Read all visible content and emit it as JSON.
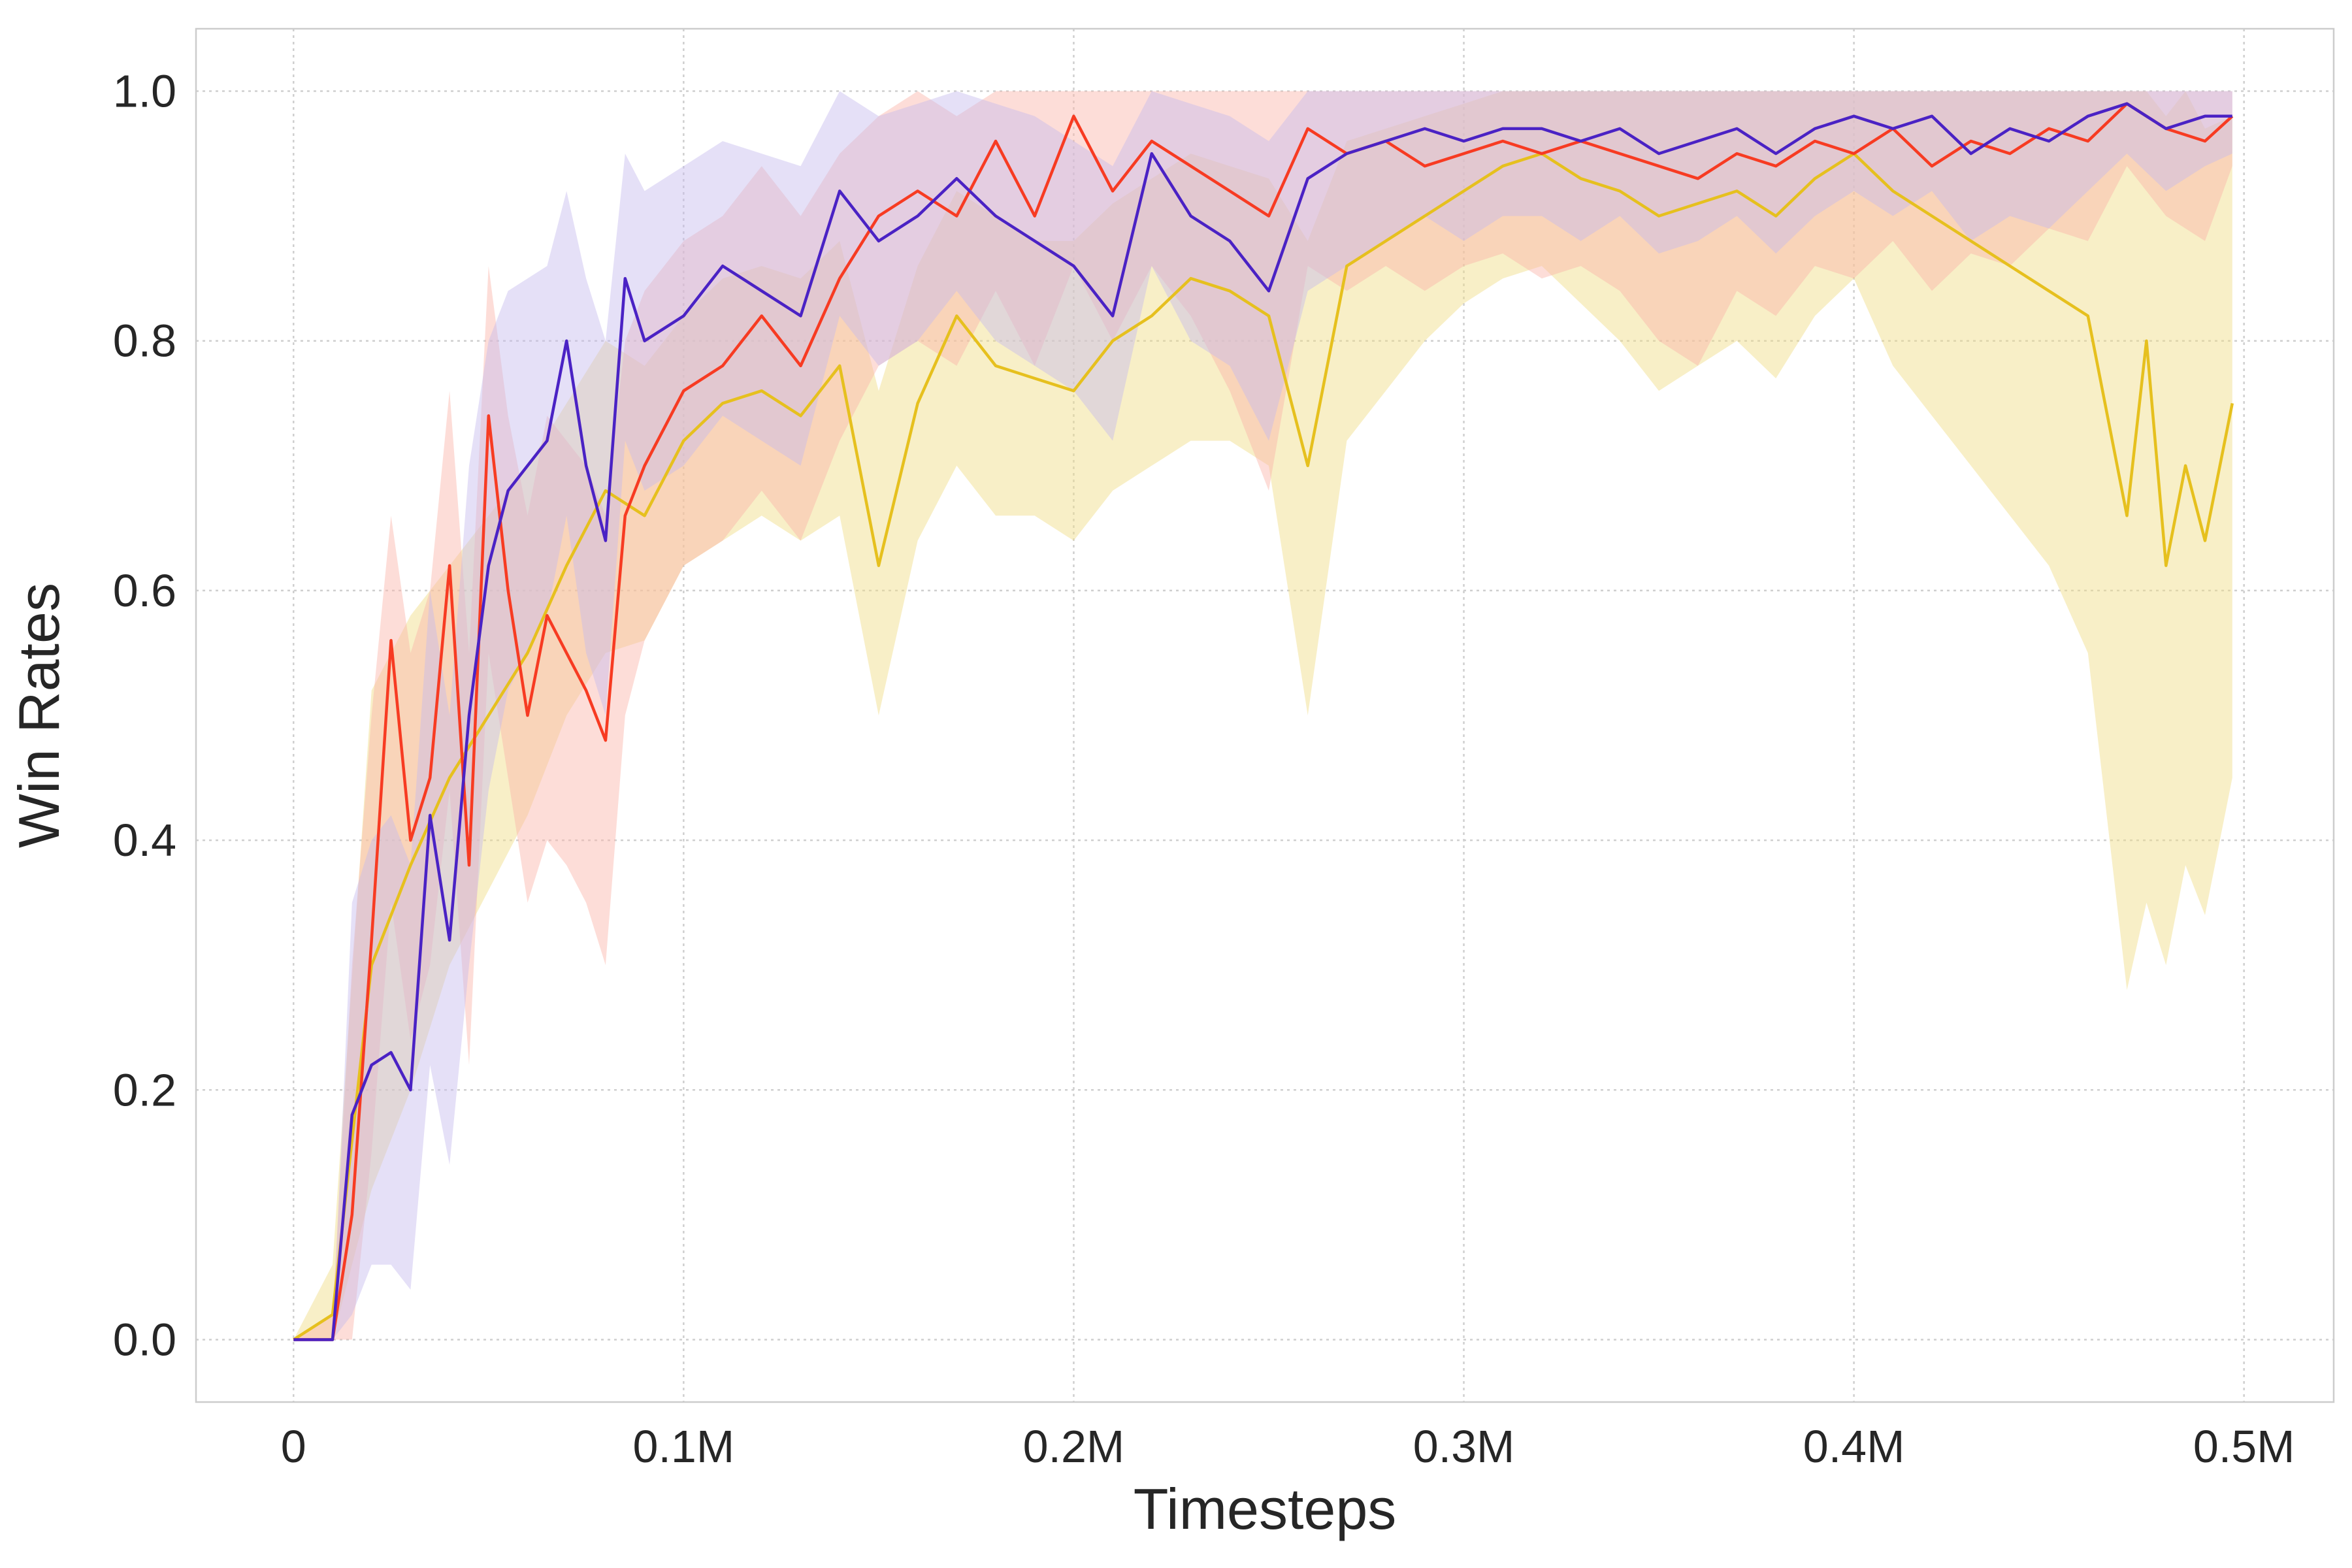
{
  "chart_data": {
    "type": "line",
    "xlabel": "Timesteps",
    "ylabel": "Win Rates",
    "xlim": [
      -25000,
      523000
    ],
    "ylim": [
      -0.05,
      1.05
    ],
    "xticks": [
      0,
      100000,
      200000,
      300000,
      400000,
      500000
    ],
    "xtick_labels": [
      "0",
      "0.1M",
      "0.2M",
      "0.3M",
      "0.4M",
      "0.5M"
    ],
    "yticks": [
      0.0,
      0.2,
      0.4,
      0.6,
      0.8,
      1.0
    ],
    "ytick_labels": [
      "0.0",
      "0.2",
      "0.4",
      "0.6",
      "0.8",
      "1.0"
    ],
    "grid": true,
    "legend": "none",
    "colors": {
      "yellow": "#e6c01e",
      "red": "#f73b22",
      "purple": "#4a22c4"
    },
    "series": [
      {
        "color": "#e6c01e",
        "band_color": "#f0dc82",
        "x": [
          0,
          10000,
          20000,
          30000,
          40000,
          50000,
          60000,
          70000,
          80000,
          90000,
          100000,
          110000,
          120000,
          130000,
          140000,
          150000,
          160000,
          170000,
          180000,
          190000,
          200000,
          210000,
          220000,
          230000,
          240000,
          250000,
          260000,
          270000,
          280000,
          290000,
          300000,
          310000,
          320000,
          330000,
          340000,
          350000,
          360000,
          370000,
          380000,
          390000,
          400000,
          410000,
          420000,
          430000,
          440000,
          450000,
          460000,
          470000,
          475000,
          480000,
          485000,
          490000,
          497000
        ],
        "values": [
          0,
          0.02,
          0.3,
          0.38,
          0.45,
          0.5,
          0.55,
          0.62,
          0.68,
          0.66,
          0.72,
          0.75,
          0.76,
          0.74,
          0.78,
          0.62,
          0.75,
          0.82,
          0.78,
          0.77,
          0.76,
          0.8,
          0.82,
          0.85,
          0.84,
          0.82,
          0.7,
          0.86,
          0.88,
          0.9,
          0.92,
          0.94,
          0.95,
          0.93,
          0.92,
          0.9,
          0.91,
          0.92,
          0.9,
          0.93,
          0.95,
          0.92,
          0.9,
          0.88,
          0.86,
          0.84,
          0.82,
          0.66,
          0.8,
          0.62,
          0.7,
          0.64,
          0.75
        ],
        "lower": [
          0,
          0,
          0.12,
          0.2,
          0.3,
          0.36,
          0.42,
          0.5,
          0.55,
          0.56,
          0.62,
          0.64,
          0.66,
          0.64,
          0.66,
          0.5,
          0.64,
          0.7,
          0.66,
          0.66,
          0.64,
          0.68,
          0.7,
          0.72,
          0.72,
          0.7,
          0.5,
          0.72,
          0.76,
          0.8,
          0.83,
          0.85,
          0.86,
          0.83,
          0.8,
          0.76,
          0.78,
          0.8,
          0.77,
          0.82,
          0.85,
          0.78,
          0.74,
          0.7,
          0.66,
          0.62,
          0.55,
          0.28,
          0.35,
          0.3,
          0.38,
          0.34,
          0.45
        ],
        "upper": [
          0,
          0.06,
          0.52,
          0.58,
          0.62,
          0.66,
          0.7,
          0.75,
          0.8,
          0.78,
          0.82,
          0.85,
          0.86,
          0.85,
          0.88,
          0.76,
          0.86,
          0.92,
          0.9,
          0.88,
          0.88,
          0.91,
          0.93,
          0.95,
          0.94,
          0.93,
          0.88,
          0.96,
          0.97,
          0.98,
          0.99,
          1.0,
          1.0,
          1.0,
          1.0,
          1.0,
          1.0,
          1.0,
          1.0,
          1.0,
          1.0,
          1.0,
          1.0,
          1.0,
          1.0,
          1.0,
          1.0,
          1.0,
          1.0,
          0.98,
          1.0,
          0.97,
          0.98
        ]
      },
      {
        "color": "#f73b22",
        "band_color": "#fbb3a9",
        "x": [
          0,
          10000,
          15000,
          20000,
          25000,
          30000,
          35000,
          40000,
          45000,
          50000,
          55000,
          60000,
          65000,
          70000,
          75000,
          80000,
          85000,
          90000,
          100000,
          110000,
          120000,
          130000,
          140000,
          150000,
          160000,
          170000,
          180000,
          190000,
          200000,
          210000,
          220000,
          230000,
          240000,
          250000,
          260000,
          270000,
          280000,
          290000,
          300000,
          310000,
          320000,
          330000,
          340000,
          350000,
          360000,
          370000,
          380000,
          390000,
          400000,
          410000,
          420000,
          430000,
          440000,
          450000,
          460000,
          470000,
          480000,
          490000,
          497000
        ],
        "values": [
          0,
          0,
          0.1,
          0.32,
          0.56,
          0.4,
          0.45,
          0.62,
          0.38,
          0.74,
          0.6,
          0.5,
          0.58,
          0.55,
          0.52,
          0.48,
          0.66,
          0.7,
          0.76,
          0.78,
          0.82,
          0.78,
          0.85,
          0.9,
          0.92,
          0.9,
          0.96,
          0.9,
          0.98,
          0.92,
          0.96,
          0.94,
          0.92,
          0.9,
          0.97,
          0.95,
          0.96,
          0.94,
          0.95,
          0.96,
          0.95,
          0.96,
          0.95,
          0.94,
          0.93,
          0.95,
          0.94,
          0.96,
          0.95,
          0.97,
          0.94,
          0.96,
          0.95,
          0.97,
          0.96,
          0.99,
          0.97,
          0.96,
          0.98
        ],
        "lower": [
          0,
          0,
          0,
          0.15,
          0.35,
          0.24,
          0.3,
          0.44,
          0.22,
          0.55,
          0.45,
          0.35,
          0.4,
          0.38,
          0.35,
          0.3,
          0.5,
          0.56,
          0.62,
          0.64,
          0.68,
          0.64,
          0.72,
          0.78,
          0.8,
          0.78,
          0.84,
          0.78,
          0.86,
          0.8,
          0.86,
          0.82,
          0.76,
          0.68,
          0.86,
          0.84,
          0.86,
          0.84,
          0.86,
          0.87,
          0.85,
          0.86,
          0.84,
          0.8,
          0.78,
          0.84,
          0.82,
          0.86,
          0.85,
          0.88,
          0.84,
          0.87,
          0.86,
          0.89,
          0.88,
          0.94,
          0.9,
          0.88,
          0.94
        ],
        "upper": [
          0,
          0.02,
          0.3,
          0.5,
          0.66,
          0.55,
          0.6,
          0.76,
          0.55,
          0.86,
          0.74,
          0.66,
          0.74,
          0.72,
          0.7,
          0.66,
          0.8,
          0.84,
          0.88,
          0.9,
          0.94,
          0.9,
          0.95,
          0.98,
          1.0,
          0.98,
          1.0,
          1.0,
          1.0,
          1.0,
          1.0,
          1.0,
          1.0,
          1.0,
          1.0,
          1.0,
          1.0,
          1.0,
          1.0,
          1.0,
          1.0,
          1.0,
          1.0,
          1.0,
          1.0,
          1.0,
          1.0,
          1.0,
          1.0,
          1.0,
          1.0,
          1.0,
          1.0,
          1.0,
          1.0,
          1.0,
          1.0,
          1.0,
          1.0
        ]
      },
      {
        "color": "#4a22c4",
        "band_color": "#c5bbee",
        "x": [
          0,
          10000,
          15000,
          20000,
          25000,
          30000,
          35000,
          40000,
          45000,
          50000,
          55000,
          60000,
          65000,
          70000,
          75000,
          80000,
          85000,
          90000,
          100000,
          110000,
          120000,
          130000,
          140000,
          150000,
          160000,
          170000,
          180000,
          190000,
          200000,
          210000,
          220000,
          230000,
          240000,
          250000,
          260000,
          270000,
          280000,
          290000,
          300000,
          310000,
          320000,
          330000,
          340000,
          350000,
          360000,
          370000,
          380000,
          390000,
          400000,
          410000,
          420000,
          430000,
          440000,
          450000,
          460000,
          470000,
          480000,
          490000,
          497000
        ],
        "values": [
          0,
          0,
          0.18,
          0.22,
          0.23,
          0.2,
          0.42,
          0.32,
          0.5,
          0.62,
          0.68,
          0.7,
          0.72,
          0.8,
          0.7,
          0.64,
          0.85,
          0.8,
          0.82,
          0.86,
          0.84,
          0.82,
          0.92,
          0.88,
          0.9,
          0.93,
          0.9,
          0.88,
          0.86,
          0.82,
          0.95,
          0.9,
          0.88,
          0.84,
          0.93,
          0.95,
          0.96,
          0.97,
          0.96,
          0.97,
          0.97,
          0.96,
          0.97,
          0.95,
          0.96,
          0.97,
          0.95,
          0.97,
          0.98,
          0.97,
          0.98,
          0.95,
          0.97,
          0.96,
          0.98,
          0.99,
          0.97,
          0.98,
          0.98
        ],
        "lower": [
          0,
          0,
          0.02,
          0.06,
          0.06,
          0.04,
          0.22,
          0.14,
          0.3,
          0.44,
          0.52,
          0.55,
          0.58,
          0.66,
          0.55,
          0.5,
          0.72,
          0.68,
          0.7,
          0.74,
          0.72,
          0.7,
          0.82,
          0.78,
          0.8,
          0.84,
          0.8,
          0.78,
          0.76,
          0.72,
          0.86,
          0.8,
          0.78,
          0.72,
          0.84,
          0.86,
          0.88,
          0.9,
          0.88,
          0.9,
          0.9,
          0.88,
          0.9,
          0.87,
          0.88,
          0.9,
          0.87,
          0.9,
          0.92,
          0.9,
          0.92,
          0.88,
          0.9,
          0.89,
          0.92,
          0.95,
          0.92,
          0.94,
          0.95
        ],
        "upper": [
          0,
          0,
          0.35,
          0.4,
          0.42,
          0.38,
          0.6,
          0.5,
          0.7,
          0.8,
          0.84,
          0.85,
          0.86,
          0.92,
          0.85,
          0.8,
          0.95,
          0.92,
          0.94,
          0.96,
          0.95,
          0.94,
          1.0,
          0.98,
          0.99,
          1.0,
          0.99,
          0.98,
          0.96,
          0.94,
          1.0,
          0.99,
          0.98,
          0.96,
          1.0,
          1.0,
          1.0,
          1.0,
          1.0,
          1.0,
          1.0,
          1.0,
          1.0,
          1.0,
          1.0,
          1.0,
          1.0,
          1.0,
          1.0,
          1.0,
          1.0,
          1.0,
          1.0,
          1.0,
          1.0,
          1.0,
          1.0,
          1.0,
          1.0
        ]
      }
    ]
  }
}
